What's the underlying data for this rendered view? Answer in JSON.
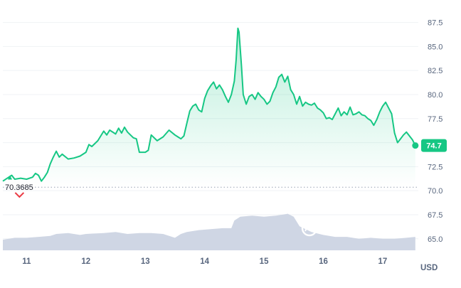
{
  "chart_data": {
    "type": "area",
    "currency": "USD",
    "watermark": "CoinMarketCap",
    "colors": {
      "line": "#16c784",
      "fill_top": "#16c784",
      "volume": "#cfd6e4",
      "down_marker": "#ea3943",
      "grid": "#eff2f5",
      "axis_text": "#58667e"
    },
    "ylim": [
      63.8,
      88.8
    ],
    "y_ticks": [
      65.0,
      67.5,
      70.0,
      72.5,
      75.0,
      77.5,
      80.0,
      82.5,
      85.0,
      87.5
    ],
    "y_tick_labels": [
      "65.0",
      "67.5",
      "70.0",
      "72.5",
      "75.0",
      "77.5",
      "80.0",
      "82.5",
      "85.0",
      "87.5"
    ],
    "xlim": [
      10.6,
      17.6
    ],
    "x_ticks": [
      11,
      12,
      13,
      14,
      15,
      16,
      17
    ],
    "x_tick_labels": [
      "11",
      "12",
      "13",
      "14",
      "15",
      "16",
      "17"
    ],
    "reference": {
      "value": 70.3685,
      "label": "70.3685"
    },
    "last_price": {
      "x": 17.55,
      "value": 74.7,
      "label": "74.7"
    },
    "series": [
      {
        "points": [
          [
            10.6,
            71.0
          ],
          [
            10.7,
            71.4
          ],
          [
            10.75,
            71.6
          ],
          [
            10.8,
            71.2
          ],
          [
            10.9,
            71.3
          ],
          [
            11.0,
            71.2
          ],
          [
            11.1,
            71.4
          ],
          [
            11.15,
            71.8
          ],
          [
            11.2,
            71.6
          ],
          [
            11.25,
            71.0
          ],
          [
            11.3,
            71.4
          ],
          [
            11.35,
            71.9
          ],
          [
            11.4,
            72.8
          ],
          [
            11.45,
            73.5
          ],
          [
            11.5,
            74.1
          ],
          [
            11.55,
            73.5
          ],
          [
            11.6,
            73.8
          ],
          [
            11.7,
            73.3
          ],
          [
            11.8,
            73.4
          ],
          [
            11.9,
            73.6
          ],
          [
            12.0,
            74.0
          ],
          [
            12.05,
            74.8
          ],
          [
            12.1,
            74.6
          ],
          [
            12.2,
            75.2
          ],
          [
            12.3,
            76.2
          ],
          [
            12.35,
            75.8
          ],
          [
            12.4,
            76.3
          ],
          [
            12.5,
            75.9
          ],
          [
            12.55,
            76.5
          ],
          [
            12.6,
            76.0
          ],
          [
            12.65,
            76.6
          ],
          [
            12.7,
            76.1
          ],
          [
            12.75,
            75.8
          ],
          [
            12.8,
            75.5
          ],
          [
            12.85,
            75.4
          ],
          [
            12.9,
            74.0
          ],
          [
            13.0,
            74.0
          ],
          [
            13.05,
            74.2
          ],
          [
            13.1,
            75.8
          ],
          [
            13.2,
            75.2
          ],
          [
            13.3,
            75.6
          ],
          [
            13.4,
            76.3
          ],
          [
            13.5,
            75.8
          ],
          [
            13.55,
            75.6
          ],
          [
            13.6,
            75.4
          ],
          [
            13.65,
            75.7
          ],
          [
            13.7,
            77.0
          ],
          [
            13.75,
            78.3
          ],
          [
            13.8,
            78.8
          ],
          [
            13.85,
            79.0
          ],
          [
            13.9,
            78.4
          ],
          [
            13.95,
            78.2
          ],
          [
            14.0,
            79.6
          ],
          [
            14.05,
            80.4
          ],
          [
            14.1,
            80.9
          ],
          [
            14.15,
            81.3
          ],
          [
            14.2,
            80.6
          ],
          [
            14.25,
            81.0
          ],
          [
            14.3,
            80.5
          ],
          [
            14.35,
            79.8
          ],
          [
            14.4,
            79.2
          ],
          [
            14.45,
            80.0
          ],
          [
            14.5,
            81.4
          ],
          [
            14.53,
            83.6
          ],
          [
            14.56,
            86.9
          ],
          [
            14.58,
            86.5
          ],
          [
            14.62,
            83.0
          ],
          [
            14.65,
            80.0
          ],
          [
            14.7,
            79.0
          ],
          [
            14.75,
            79.8
          ],
          [
            14.8,
            80.0
          ],
          [
            14.85,
            79.5
          ],
          [
            14.9,
            80.2
          ],
          [
            14.95,
            79.8
          ],
          [
            15.0,
            79.5
          ],
          [
            15.05,
            79.0
          ],
          [
            15.1,
            79.3
          ],
          [
            15.15,
            80.2
          ],
          [
            15.2,
            80.8
          ],
          [
            15.25,
            81.8
          ],
          [
            15.3,
            82.1
          ],
          [
            15.35,
            81.3
          ],
          [
            15.4,
            81.9
          ],
          [
            15.45,
            80.5
          ],
          [
            15.5,
            80.0
          ],
          [
            15.55,
            79.0
          ],
          [
            15.6,
            79.8
          ],
          [
            15.65,
            78.8
          ],
          [
            15.7,
            79.2
          ],
          [
            15.75,
            79.0
          ],
          [
            15.8,
            78.9
          ],
          [
            15.85,
            79.1
          ],
          [
            15.9,
            78.6
          ],
          [
            15.95,
            78.4
          ],
          [
            16.0,
            78.1
          ],
          [
            16.05,
            77.5
          ],
          [
            16.1,
            77.6
          ],
          [
            16.15,
            77.4
          ],
          [
            16.2,
            78.0
          ],
          [
            16.25,
            78.6
          ],
          [
            16.3,
            77.8
          ],
          [
            16.35,
            78.2
          ],
          [
            16.4,
            77.9
          ],
          [
            16.45,
            78.7
          ],
          [
            16.5,
            77.9
          ],
          [
            16.55,
            78.0
          ],
          [
            16.6,
            78.2
          ],
          [
            16.65,
            77.9
          ],
          [
            16.7,
            77.8
          ],
          [
            16.75,
            77.5
          ],
          [
            16.8,
            77.3
          ],
          [
            16.85,
            76.8
          ],
          [
            16.9,
            77.4
          ],
          [
            16.95,
            78.2
          ],
          [
            17.0,
            78.8
          ],
          [
            17.05,
            79.2
          ],
          [
            17.1,
            78.6
          ],
          [
            17.15,
            78.0
          ],
          [
            17.2,
            76.0
          ],
          [
            17.25,
            75.0
          ],
          [
            17.3,
            75.4
          ],
          [
            17.35,
            75.8
          ],
          [
            17.4,
            76.1
          ],
          [
            17.45,
            75.7
          ],
          [
            17.5,
            75.3
          ],
          [
            17.55,
            74.7
          ]
        ]
      }
    ],
    "volume": {
      "points": [
        [
          10.6,
          64.9
        ],
        [
          10.8,
          65.1
        ],
        [
          11.0,
          65.1
        ],
        [
          11.2,
          65.2
        ],
        [
          11.4,
          65.3
        ],
        [
          11.5,
          65.5
        ],
        [
          11.7,
          65.6
        ],
        [
          11.9,
          65.4
        ],
        [
          12.0,
          65.5
        ],
        [
          12.3,
          65.6
        ],
        [
          12.5,
          65.7
        ],
        [
          12.7,
          65.5
        ],
        [
          12.9,
          65.6
        ],
        [
          13.1,
          65.6
        ],
        [
          13.3,
          65.5
        ],
        [
          13.5,
          65.1
        ],
        [
          13.6,
          65.5
        ],
        [
          13.7,
          65.7
        ],
        [
          13.9,
          65.9
        ],
        [
          14.1,
          66.0
        ],
        [
          14.3,
          66.1
        ],
        [
          14.45,
          66.1
        ],
        [
          14.5,
          66.9
        ],
        [
          14.6,
          67.3
        ],
        [
          14.8,
          67.4
        ],
        [
          15.0,
          67.3
        ],
        [
          15.2,
          67.4
        ],
        [
          15.3,
          67.5
        ],
        [
          15.4,
          67.6
        ],
        [
          15.5,
          67.3
        ],
        [
          15.6,
          66.3
        ],
        [
          15.8,
          65.7
        ],
        [
          16.0,
          65.4
        ],
        [
          16.2,
          65.2
        ],
        [
          16.4,
          65.2
        ],
        [
          16.6,
          65.0
        ],
        [
          16.8,
          65.1
        ],
        [
          17.0,
          65.0
        ],
        [
          17.2,
          65.0
        ],
        [
          17.4,
          65.1
        ],
        [
          17.55,
          65.2
        ]
      ]
    },
    "down_marker": {
      "x": 10.88,
      "value": 69.5
    },
    "start_marker": {
      "x": 10.72,
      "value": 71.6
    }
  }
}
